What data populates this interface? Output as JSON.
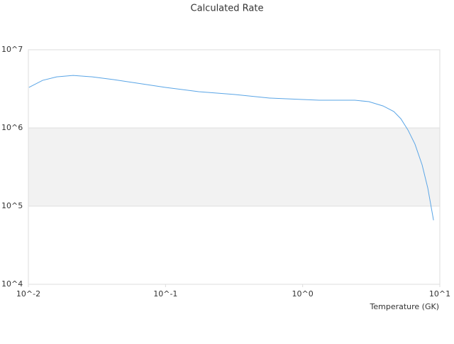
{
  "chart_data": {
    "type": "line",
    "title": "Calculated Rate",
    "x_label": "Temperature (GK)",
    "xscale": "log",
    "yscale": "log",
    "grid": true,
    "xlim": [
      0.01,
      10
    ],
    "ylim": [
      10000,
      10000000
    ],
    "xticks": [
      {
        "value": 0.01,
        "label": "10^-2"
      },
      {
        "value": 0.1,
        "label": "10^-1"
      },
      {
        "value": 1,
        "label": "10^0"
      },
      {
        "value": 10,
        "label": "10^1"
      }
    ],
    "yticks": [
      {
        "value": 10000,
        "label": "10^4"
      },
      {
        "value": 100000,
        "label": "10^5"
      },
      {
        "value": 1000000,
        "label": "10^6"
      },
      {
        "value": 10000000,
        "label": "10^7"
      }
    ],
    "band": {
      "range": [
        100000,
        1000000
      ],
      "color": "#f2f2f2"
    },
    "series": [
      {
        "color": "#5aa5e6",
        "x": [
          0.0101,
          0.0127,
          0.0161,
          0.0212,
          0.0292,
          0.0418,
          0.0673,
          0.1,
          0.1746,
          0.316,
          0.574,
          1.0,
          1.32,
          2.4,
          3.04,
          3.86,
          4.62,
          5.2,
          5.86,
          6.59,
          7.43,
          8.18,
          9.0
        ],
        "values": [
          3300000,
          4060000,
          4500000,
          4700000,
          4500000,
          4150000,
          3660000,
          3300000,
          2910000,
          2680000,
          2410000,
          2310000,
          2260000,
          2260000,
          2170000,
          1910000,
          1620000,
          1310000,
          940000,
          620000,
          337000,
          169000,
          66000
        ]
      }
    ]
  }
}
